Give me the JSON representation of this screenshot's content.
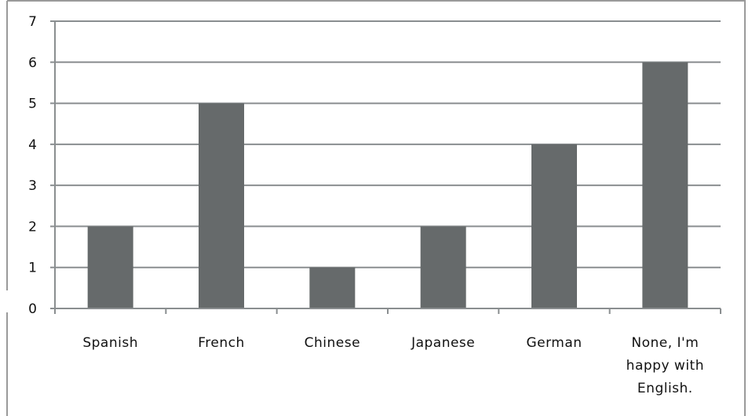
{
  "chart_data": {
    "type": "bar",
    "categories": [
      "Spanish",
      "French",
      "Chinese",
      "Japanese",
      "German",
      "None, I'm happy with English."
    ],
    "category_lines": [
      [
        "Spanish"
      ],
      [
        "French"
      ],
      [
        "Chinese"
      ],
      [
        "Japanese"
      ],
      [
        "German"
      ],
      [
        "None, I'm",
        "happy with",
        "English."
      ]
    ],
    "values": [
      2,
      5,
      1,
      2,
      4,
      6
    ],
    "ylim": [
      0,
      7
    ],
    "yticks": [
      "0",
      "1",
      "2",
      "3",
      "4",
      "5",
      "6",
      "7"
    ],
    "title": "",
    "xlabel": "",
    "ylabel": "",
    "grid": true,
    "legend": "none",
    "colors": {
      "bar": "#666a6b",
      "grid": "#8a8e90",
      "frame": "#9a9a9a",
      "axis": "#8a8e90",
      "text": "#111111"
    }
  }
}
